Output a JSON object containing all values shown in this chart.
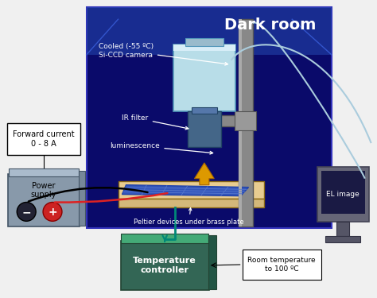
{
  "title": "Dark room",
  "bg_color": "#0a0a6a",
  "outer_bg": "#f0f0f0",
  "camera_label": "Cooled (-55 ºC)\nSi-CCD camera",
  "ir_filter_label": "IR filter",
  "luminescence_label": "luminescence",
  "peltier_label": "Peltier devices under brass plate",
  "power_supply_label": "Power\nsupply",
  "forward_current_label": "Forward current\n0 - 8 A",
  "temp_controller_label": "Temperature\ncontroller",
  "room_temp_label": "Room temperature\nto 100 ºC",
  "el_image_label": "EL image",
  "camera_color": "#b8dde8",
  "camera_dark": "#8ab0c0",
  "stand_color": "#888888",
  "stand_dark": "#555555",
  "table_color": "#d4b87a",
  "table_light": "#e8cc90",
  "solar_panel_color": "#3355bb",
  "solar_line_color": "#5577cc",
  "power_supply_color": "#8899aa",
  "ps_dark": "#6688aa",
  "temp_controller_color": "#336655",
  "tc_light": "#44aa77",
  "computer_color": "#666677",
  "luminescence_color": "#dd9900",
  "luminescence_light": "#ffcc44",
  "cable_color": "#aaccdd",
  "teal_wire": "#008877"
}
